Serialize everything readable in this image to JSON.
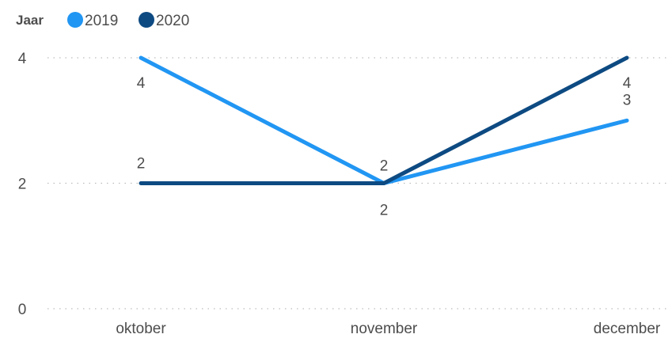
{
  "chart_data": {
    "type": "line",
    "categories": [
      "oktober",
      "november",
      "december"
    ],
    "series": [
      {
        "name": "2019",
        "values": [
          4,
          2,
          3
        ],
        "color": "#2196f3"
      },
      {
        "name": "2020",
        "values": [
          2,
          2,
          4
        ],
        "color": "#0d4a82"
      }
    ],
    "title": "",
    "xlabel": "",
    "ylabel": "",
    "ylim": [
      0,
      4
    ],
    "yticks": [
      0,
      2,
      4
    ],
    "grid": true,
    "legend": {
      "title": "Jaar",
      "placement": "top-left"
    },
    "data_labels": true
  }
}
